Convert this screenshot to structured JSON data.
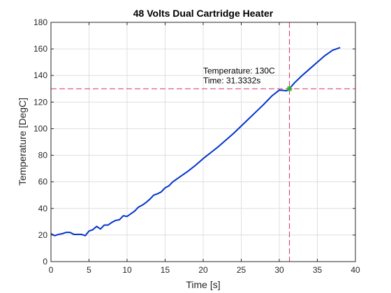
{
  "chart_data": {
    "type": "line",
    "title": "48 Volts Dual Cartridge Heater",
    "xlabel": "Time [s]",
    "ylabel": "Temperature [DegC]",
    "xlim": [
      0,
      40
    ],
    "ylim": [
      0,
      180
    ],
    "xticks": [
      0,
      5,
      10,
      15,
      20,
      25,
      30,
      35,
      40
    ],
    "yticks": [
      0,
      20,
      40,
      60,
      80,
      100,
      120,
      140,
      160,
      180
    ],
    "grid": true,
    "series": [
      {
        "color": "#0033cc",
        "x": [
          0,
          0.5,
          1,
          1.5,
          2,
          2.5,
          3,
          3.5,
          4,
          4.5,
          5,
          5.5,
          6,
          6.5,
          7,
          7.5,
          8,
          8.5,
          9,
          9.5,
          10,
          10.5,
          11,
          11.5,
          12,
          12.5,
          13,
          13.5,
          14,
          14.5,
          15,
          15.5,
          16,
          17,
          18,
          19,
          20,
          21,
          22,
          23,
          24,
          25,
          26,
          27,
          28,
          29,
          30,
          31,
          31.3332,
          32,
          33,
          34,
          35,
          36,
          37,
          38
        ],
        "y": [
          21,
          19.5,
          20.5,
          21,
          22,
          22,
          20.5,
          20.5,
          20.5,
          19.5,
          23,
          24,
          26.5,
          24.5,
          27.5,
          27.5,
          29.5,
          31,
          31.5,
          34.5,
          34,
          36,
          38,
          41,
          42.5,
          44.5,
          47,
          50,
          51,
          52.5,
          55.5,
          57,
          60,
          64,
          68,
          72.5,
          77.5,
          82,
          86.5,
          91.5,
          96.5,
          102,
          107.5,
          113,
          118.5,
          124.5,
          129,
          128.5,
          130,
          134.5,
          140,
          145,
          150,
          155,
          159,
          161
        ]
      }
    ],
    "annotations": [
      {
        "x": 31.3332,
        "y": 130,
        "line1": "Temperature: 130C",
        "line2": "Time: 31.3332s",
        "color": "#cc3366",
        "marker_color": "#33aa33"
      }
    ]
  }
}
